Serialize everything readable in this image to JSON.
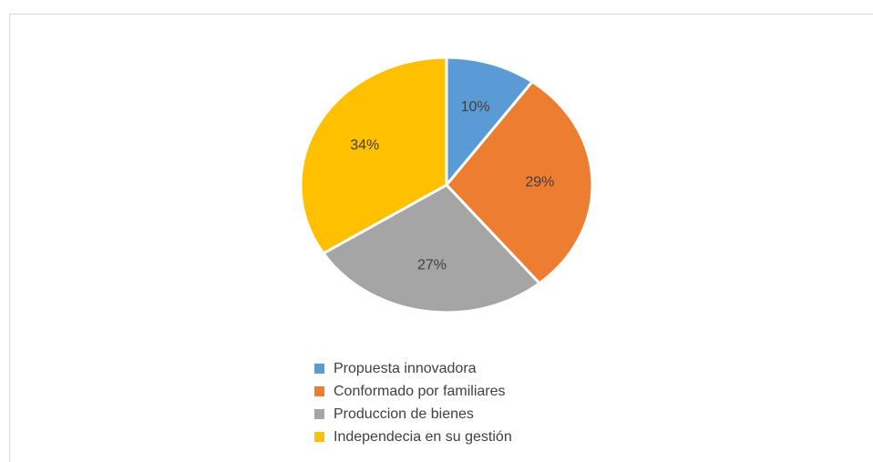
{
  "chart_data": {
    "type": "pie",
    "categories": [
      "Propuesta innovadora",
      "Conformado por familiares",
      "Produccion de bienes",
      "Independecia en su gestión"
    ],
    "values": [
      10,
      29,
      27,
      34
    ],
    "value_labels": [
      "10%",
      "29%",
      "27%",
      "34%"
    ],
    "colors": [
      "#5b9bd5",
      "#ed7d31",
      "#a5a5a5",
      "#ffc000"
    ],
    "legend": "bottom"
  }
}
